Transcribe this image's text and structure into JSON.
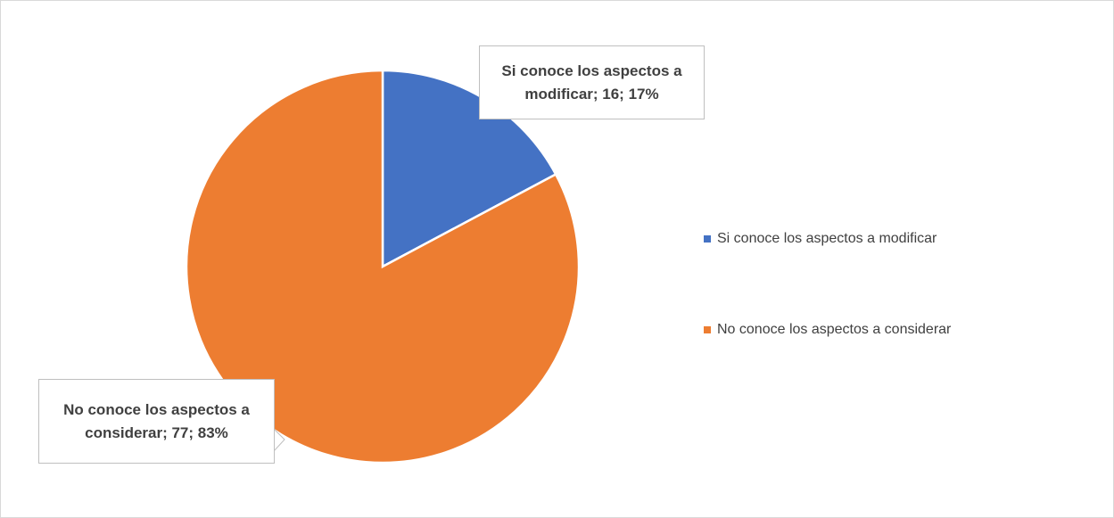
{
  "chart_data": {
    "type": "pie",
    "categories": [
      "Si conoce los aspectos a modificar",
      "No conoce los aspectos a considerar"
    ],
    "values": [
      16,
      77
    ],
    "value_labels": [
      "Si conoce los aspectos a modificar; 16; 17%",
      "No conoce los aspectos a considerar; 77; 83%"
    ],
    "colors": [
      "#4472c4",
      "#ed7d31"
    ],
    "legend": "right"
  }
}
